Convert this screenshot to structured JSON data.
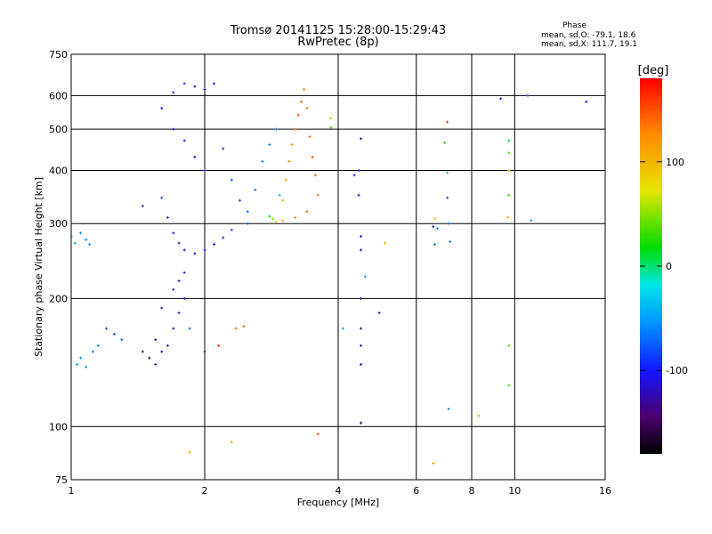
{
  "chart_data": {
    "type": "scatter",
    "title": "Tromsø 20141125 15:28:00-15:29:43",
    "subtitle": "RwPretec (8p)",
    "xlabel": "Frequency [MHz]",
    "ylabel": "Stationary phase Virtual Height [km]",
    "x_scale": "log",
    "y_scale": "log",
    "xlim": [
      1,
      16
    ],
    "ylim": [
      75,
      750
    ],
    "x_ticks": [
      1,
      2,
      4,
      6,
      8,
      10,
      16
    ],
    "y_ticks": [
      75,
      100,
      200,
      300,
      400,
      500,
      600,
      750
    ],
    "grid": true,
    "phase_info": {
      "title": "Phase",
      "o_line": "mean, sd,O: -79.1, 18.6",
      "x_line": "mean, sd,X: 111.7, 19.1"
    },
    "colorbar": {
      "label": "[deg]",
      "range": [
        -180,
        180
      ],
      "ticks": [
        100,
        0,
        -100
      ]
    },
    "series": [
      {
        "points": [
          [
            1.0,
            280,
            -60
          ],
          [
            1.02,
            270,
            -55
          ],
          [
            1.05,
            285,
            -65
          ],
          [
            1.08,
            275,
            -60
          ],
          [
            1.1,
            268,
            -58
          ],
          [
            1.03,
            140,
            -50
          ],
          [
            1.05,
            145,
            -55
          ],
          [
            1.08,
            138,
            -50
          ],
          [
            1.12,
            150,
            -60
          ],
          [
            1.15,
            155,
            -65
          ],
          [
            1.2,
            170,
            -80
          ],
          [
            1.25,
            165,
            -90
          ],
          [
            1.3,
            160,
            -75
          ],
          [
            1.45,
            330,
            -90
          ],
          [
            1.6,
            345,
            -85
          ],
          [
            1.65,
            310,
            -100
          ],
          [
            1.7,
            285,
            -110
          ],
          [
            1.75,
            270,
            -115
          ],
          [
            1.8,
            260,
            -120
          ],
          [
            1.9,
            255,
            -110
          ],
          [
            2.0,
            260,
            -105
          ],
          [
            2.1,
            268,
            -100
          ],
          [
            2.2,
            278,
            -95
          ],
          [
            2.3,
            290,
            -90
          ],
          [
            2.5,
            300,
            -80
          ],
          [
            1.55,
            160,
            -130
          ],
          [
            1.6,
            150,
            -140
          ],
          [
            1.65,
            155,
            -120
          ],
          [
            1.7,
            170,
            -110
          ],
          [
            1.75,
            185,
            -100
          ],
          [
            1.8,
            200,
            -105
          ],
          [
            1.7,
            210,
            -110
          ],
          [
            1.75,
            220,
            -100
          ],
          [
            1.8,
            230,
            -95
          ],
          [
            1.6,
            190,
            -120
          ],
          [
            1.6,
            560,
            -105
          ],
          [
            1.7,
            610,
            -100
          ],
          [
            1.8,
            640,
            -95
          ],
          [
            1.9,
            630,
            -100
          ],
          [
            2.0,
            620,
            -105
          ],
          [
            2.1,
            640,
            -100
          ],
          [
            1.7,
            500,
            -110
          ],
          [
            1.8,
            470,
            -105
          ],
          [
            1.9,
            430,
            -100
          ],
          [
            2.0,
            400,
            -95
          ],
          [
            2.2,
            450,
            -90
          ],
          [
            2.3,
            380,
            -85
          ],
          [
            2.4,
            340,
            -80
          ],
          [
            2.5,
            320,
            -75
          ],
          [
            2.6,
            360,
            -70
          ],
          [
            2.7,
            420,
            -65
          ],
          [
            2.8,
            460,
            -60
          ],
          [
            2.9,
            500,
            -55
          ],
          [
            2.95,
            350,
            -40
          ],
          [
            3.0,
            340,
            100
          ],
          [
            3.05,
            380,
            120
          ],
          [
            3.1,
            420,
            130
          ],
          [
            3.15,
            460,
            125
          ],
          [
            3.2,
            500,
            140
          ],
          [
            3.25,
            540,
            150
          ],
          [
            3.3,
            580,
            145
          ],
          [
            3.35,
            620,
            130
          ],
          [
            3.4,
            560,
            135
          ],
          [
            3.45,
            480,
            140
          ],
          [
            3.5,
            430,
            145
          ],
          [
            3.55,
            390,
            150
          ],
          [
            3.6,
            350,
            140
          ],
          [
            3.2,
            310,
            130
          ],
          [
            3.4,
            320,
            140
          ],
          [
            3.0,
            305,
            110
          ],
          [
            2.9,
            303,
            60
          ],
          [
            2.85,
            308,
            50
          ],
          [
            2.8,
            312,
            20
          ],
          [
            3.85,
            530,
            60
          ],
          [
            3.85,
            505,
            30
          ],
          [
            4.45,
            400,
            -105
          ],
          [
            4.45,
            350,
            -120
          ],
          [
            4.5,
            280,
            -110
          ],
          [
            4.5,
            260,
            -130
          ],
          [
            4.5,
            200,
            -140
          ],
          [
            4.5,
            170,
            -150
          ],
          [
            4.5,
            155,
            -140
          ],
          [
            4.5,
            140,
            -130
          ],
          [
            4.5,
            102,
            -150
          ],
          [
            4.6,
            225,
            -60
          ],
          [
            4.35,
            390,
            -100
          ],
          [
            4.5,
            475,
            -140
          ],
          [
            4.95,
            185,
            -110
          ],
          [
            5.1,
            270,
            100
          ],
          [
            4.1,
            170,
            -40
          ],
          [
            2.35,
            170,
            140
          ],
          [
            2.45,
            172,
            150
          ],
          [
            2.15,
            155,
            160
          ],
          [
            2.3,
            92,
            110
          ],
          [
            3.6,
            96,
            150
          ],
          [
            1.85,
            87,
            110
          ],
          [
            6.55,
            82,
            120
          ],
          [
            6.55,
            295,
            -120
          ],
          [
            6.6,
            268,
            -70
          ],
          [
            6.6,
            308,
            100
          ],
          [
            6.7,
            292,
            -60
          ],
          [
            6.95,
            465,
            20
          ],
          [
            7.05,
            520,
            160
          ],
          [
            7.05,
            395,
            -40
          ],
          [
            7.05,
            345,
            -80
          ],
          [
            7.1,
            300,
            -70
          ],
          [
            7.15,
            272,
            -60
          ],
          [
            7.1,
            110,
            -60
          ],
          [
            8.3,
            106,
            120
          ],
          [
            9.3,
            590,
            -100
          ],
          [
            9.7,
            470,
            10
          ],
          [
            9.7,
            440,
            40
          ],
          [
            9.7,
            400,
            100
          ],
          [
            9.7,
            350,
            30
          ],
          [
            9.65,
            310,
            110
          ],
          [
            9.7,
            155,
            40
          ],
          [
            9.7,
            125,
            30
          ],
          [
            10.7,
            600,
            -70
          ],
          [
            10.9,
            305,
            -50
          ],
          [
            14.5,
            580,
            -110
          ],
          [
            2.0,
            150,
            -140
          ],
          [
            1.85,
            170,
            -70
          ],
          [
            1.45,
            150,
            -140
          ],
          [
            1.5,
            145,
            -160
          ],
          [
            1.55,
            140,
            -140
          ]
        ]
      }
    ]
  }
}
